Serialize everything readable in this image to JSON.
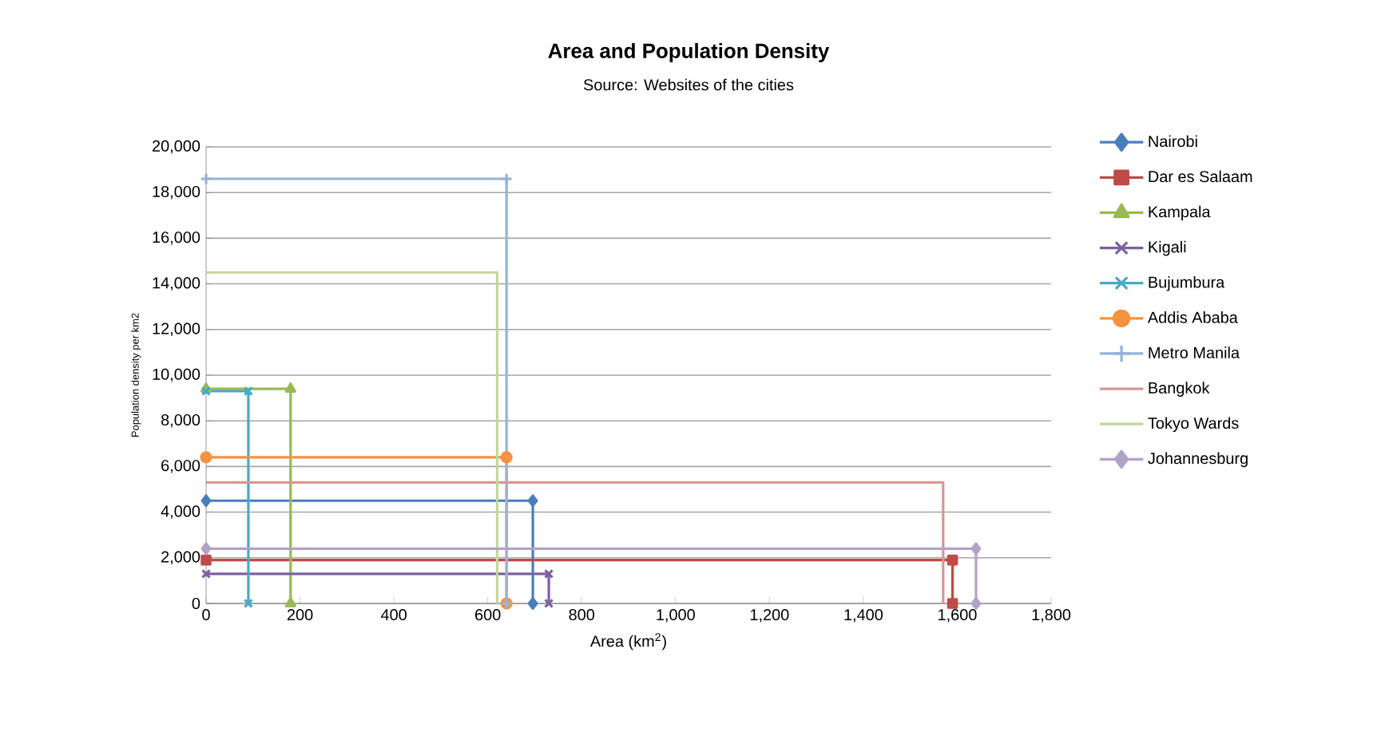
{
  "chart_data": {
    "type": "line",
    "title": "Area and Population Density",
    "subtitle": "Source: Websites  of  the cities",
    "xlabel": "Area (km$^{2}$)",
    "ylabel": "Population density per km2",
    "xlim": [
      0,
      1800
    ],
    "xticks": [
      0,
      200,
      400,
      600,
      800,
      {
        "value": 1000,
        "label": "1,000"
      },
      {
        "value": 1200,
        "label": "1,200"
      },
      {
        "value": 1400,
        "label": "1,400"
      },
      {
        "value": 1600,
        "label": "1,600"
      },
      {
        "value": 1800,
        "label": "1,800"
      }
    ],
    "ylim": [
      0,
      20000
    ],
    "yticks": [
      0,
      {
        "value": 2000,
        "label": "2,000"
      },
      {
        "value": 4000,
        "label": "4,000"
      },
      {
        "value": 6000,
        "label": "6,000"
      },
      {
        "value": 8000,
        "label": "8,000"
      },
      {
        "value": 10000,
        "label": "10,000"
      },
      {
        "value": 12000,
        "label": "12,000"
      },
      {
        "value": 14000,
        "label": "14,000"
      },
      {
        "value": 16000,
        "label": "16,000"
      },
      {
        "value": 18000,
        "label": "18,000"
      },
      {
        "value": 20000,
        "label": "20,000"
      }
    ],
    "grid": "y",
    "legend": "right",
    "line_style": "solid",
    "series": [
      {
        "name": "Nairobi",
        "color": "#4a7ebb",
        "marker": "diamond",
        "x": [
          0,
          696,
          696
        ],
        "values": [
          4500,
          4500,
          0
        ]
      },
      {
        "name": "Dar es Salaam",
        "color": "#be4b48",
        "marker": "square",
        "x": [
          0,
          1590,
          1590
        ],
        "values": [
          1900,
          1900,
          0
        ]
      },
      {
        "name": "Kampala",
        "color": "#98b954",
        "marker": "triangle",
        "x": [
          0,
          180,
          180
        ],
        "values": [
          9400,
          9400,
          0
        ]
      },
      {
        "name": "Kigali",
        "color": "#7d60a0",
        "marker": "cross",
        "x": [
          0,
          730,
          730
        ],
        "values": [
          1300,
          1300,
          0
        ]
      },
      {
        "name": "Bujumbura",
        "color": "#46aac5",
        "marker": "cross",
        "x": [
          0,
          90,
          90
        ],
        "values": [
          9300,
          9300,
          0
        ]
      },
      {
        "name": "Addis Ababa",
        "color": "#f69240",
        "marker": "circle",
        "x": [
          0,
          640,
          640
        ],
        "values": [
          6400,
          6400,
          0
        ]
      },
      {
        "name": "Metro Manila",
        "color": "#95b3d7",
        "marker": "plus",
        "x": [
          0,
          640,
          640
        ],
        "values": [
          18600,
          18600,
          0
        ]
      },
      {
        "name": "Bangkok",
        "color": "#d99694",
        "marker": "none",
        "x": [
          0,
          1570,
          1570
        ],
        "values": [
          5300,
          5300,
          0
        ]
      },
      {
        "name": "Tokyo Wards",
        "color": "#c3d69b",
        "marker": "none",
        "x": [
          0,
          620,
          620
        ],
        "values": [
          14500,
          14500,
          0
        ]
      },
      {
        "name": "Johannesburg",
        "color": "#b3a2c7",
        "marker": "diamond",
        "x": [
          0,
          1640,
          1640
        ],
        "values": [
          2400,
          2400,
          0
        ]
      }
    ]
  }
}
